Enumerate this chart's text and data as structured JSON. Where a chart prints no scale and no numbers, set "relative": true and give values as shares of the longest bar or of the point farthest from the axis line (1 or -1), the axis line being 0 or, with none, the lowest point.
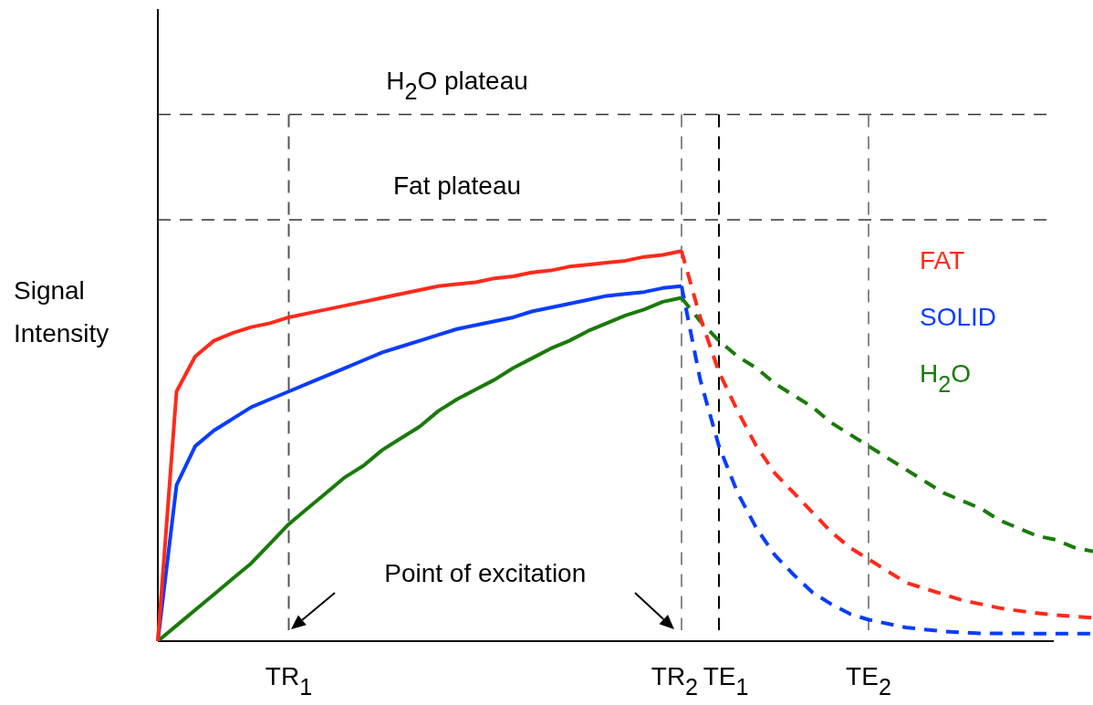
{
  "chart_data": {
    "type": "line",
    "relative": true,
    "ylabel": "Signal Intensity",
    "categories": [
      null,
      null,
      null,
      null,
      null,
      null,
      null,
      "TR$_{1}$",
      null,
      null,
      null,
      null,
      null,
      null,
      null,
      null,
      null,
      null,
      null,
      null,
      null,
      null,
      null,
      null,
      null,
      null,
      null,
      null,
      "TR$_{2}$",
      null,
      "TE$_{1}$",
      null,
      null,
      null,
      null,
      null,
      null,
      null,
      "TE$_{2}$",
      null,
      null,
      null,
      null,
      null,
      null,
      null,
      null,
      null,
      null,
      null,
      null
    ],
    "marker": "none",
    "legend": "right",
    "series": [
      {
        "name": "FAT",
        "color": "#ff2a1a",
        "line_style": "solid",
        "values": [
          0,
          0.64,
          0.73,
          0.77,
          0.79,
          0.805,
          0.815,
          0.83,
          0.84,
          0.85,
          0.86,
          0.87,
          0.88,
          0.89,
          0.9,
          0.91,
          0.915,
          0.92,
          0.93,
          0.935,
          0.945,
          0.95,
          0.96,
          0.965,
          0.97,
          0.975,
          0.985,
          0.99,
          1,
          null,
          null,
          null,
          null,
          null,
          null,
          null,
          null,
          null,
          null,
          null,
          null,
          null,
          null,
          null,
          null,
          null,
          null,
          null,
          null,
          null,
          null
        ]
      },
      {
        "name": "SOLID",
        "color": "#0a3cff",
        "line_style": "solid",
        "values": [
          0,
          0.4,
          0.5,
          0.54,
          0.57,
          0.6,
          0.62,
          0.64,
          0.66,
          0.68,
          0.7,
          0.72,
          0.74,
          0.755,
          0.77,
          0.785,
          0.8,
          0.81,
          0.82,
          0.83,
          0.845,
          0.855,
          0.865,
          0.875,
          0.885,
          0.89,
          0.895,
          0.905,
          0.91,
          null,
          null,
          null,
          null,
          null,
          null,
          null,
          null,
          null,
          null,
          null,
          null,
          null,
          null,
          null,
          null,
          null,
          null,
          null,
          null,
          null,
          null
        ]
      },
      {
        "name": "H$_{2}$O",
        "color": "#1a7a0a",
        "line_style": "solid",
        "values": [
          0,
          0.04,
          0.08,
          0.12,
          0.16,
          0.2,
          0.25,
          0.3,
          0.34,
          0.38,
          0.42,
          0.45,
          0.49,
          0.52,
          0.55,
          0.59,
          0.62,
          0.645,
          0.67,
          0.7,
          0.725,
          0.75,
          0.77,
          0.795,
          0.815,
          0.835,
          0.85,
          0.87,
          0.88,
          null,
          null,
          null,
          null,
          null,
          null,
          null,
          null,
          null,
          null,
          null,
          null,
          null,
          null,
          null,
          null,
          null,
          null,
          null,
          null,
          null,
          null
        ]
      },
      {
        "color": "#ff2a1a",
        "line_style": "dashed",
        "values": [
          null,
          null,
          null,
          null,
          null,
          null,
          null,
          null,
          null,
          null,
          null,
          null,
          null,
          null,
          null,
          null,
          null,
          null,
          null,
          null,
          null,
          null,
          null,
          null,
          null,
          null,
          null,
          null,
          1,
          0.83,
          0.69,
          0.59,
          0.5,
          0.43,
          0.38,
          0.33,
          0.28,
          0.24,
          0.21,
          0.18,
          0.15,
          0.135,
          0.12,
          0.105,
          0.095,
          0.085,
          0.078,
          0.072,
          0.067,
          0.063,
          0.06
        ]
      },
      {
        "color": "#0a3cff",
        "line_style": "dashed",
        "values": [
          null,
          null,
          null,
          null,
          null,
          null,
          null,
          null,
          null,
          null,
          null,
          null,
          null,
          null,
          null,
          null,
          null,
          null,
          null,
          null,
          null,
          null,
          null,
          null,
          null,
          null,
          null,
          null,
          0.91,
          0.67,
          0.5,
          0.38,
          0.29,
          0.22,
          0.17,
          0.125,
          0.095,
          0.07,
          0.055,
          0.045,
          0.035,
          0.03,
          0.025,
          0.022,
          0.02,
          0.02,
          0.02,
          0.019,
          0.019,
          0.019,
          0.019
        ]
      },
      {
        "color": "#1a7a0a",
        "line_style": "dashed",
        "values": [
          null,
          null,
          null,
          null,
          null,
          null,
          null,
          null,
          null,
          null,
          null,
          null,
          null,
          null,
          null,
          null,
          null,
          null,
          null,
          null,
          null,
          null,
          null,
          null,
          null,
          null,
          null,
          null,
          0.88,
          0.82,
          0.77,
          0.73,
          0.7,
          0.66,
          0.63,
          0.6,
          0.56,
          0.53,
          0.5,
          0.47,
          0.44,
          0.41,
          0.38,
          0.36,
          0.34,
          0.31,
          0.29,
          0.27,
          0.26,
          0.24,
          0.23
        ]
      }
    ],
    "ref_lines": [
      {
        "axis": "y",
        "value": 1.35,
        "label": "H$_{2}$O plateau",
        "color": "#333333",
        "line_style": "dashed"
      },
      {
        "axis": "y",
        "value": 1.08,
        "label": "Fat plateau",
        "color": "#333333",
        "line_style": "dashed"
      },
      {
        "axis": "x",
        "value": "TR$_{1}$",
        "color": "#555555",
        "line_style": "dashed"
      },
      {
        "axis": "x",
        "value": "TR$_{2}$",
        "color": "#888888",
        "line_style": "dashed"
      },
      {
        "axis": "x",
        "value": "TE$_{1}$",
        "color": "#000000",
        "line_style": "dashed"
      },
      {
        "axis": "x",
        "value": "TE$_{2}$",
        "color": "#888888",
        "line_style": "dashed"
      }
    ],
    "annotations": [
      "Point of excitation"
    ]
  }
}
